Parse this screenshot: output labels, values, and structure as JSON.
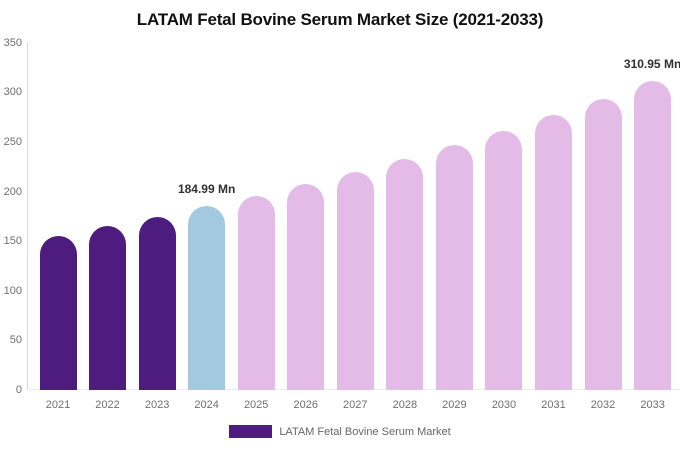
{
  "chart_data": {
    "type": "bar",
    "title": "LATAM Fetal Bovine Serum Market Size (2021-2033)",
    "series_name": "LATAM Fetal Bovine Serum Market",
    "categories": [
      "2021",
      "2022",
      "2023",
      "2024",
      "2025",
      "2026",
      "2027",
      "2028",
      "2029",
      "2030",
      "2031",
      "2032",
      "2033"
    ],
    "values": [
      155.6,
      164.8,
      174.6,
      184.99,
      196.0,
      207.6,
      219.9,
      233.0,
      246.8,
      261.5,
      277.0,
      293.5,
      310.95
    ],
    "data_labels": [
      {
        "category": "2024",
        "text": "184.99 Mn"
      },
      {
        "category": "2033",
        "text": "310.95 Mn"
      }
    ],
    "yticks": [
      0,
      50,
      100,
      150,
      200,
      250,
      300,
      350
    ],
    "ylim": [
      0,
      350
    ],
    "xlabel": "",
    "ylabel": "",
    "grid": false,
    "legend_position": "bottom",
    "bar_colors": [
      "#4E1B7E",
      "#4E1B7E",
      "#4E1B7E",
      "#A2C9E0",
      "#E4BBE7",
      "#E4BBE7",
      "#E4BBE7",
      "#E4BBE7",
      "#E4BBE7",
      "#E4BBE7",
      "#E4BBE7",
      "#E4BBE7",
      "#E4BBE7"
    ],
    "colors": {
      "historical_bar": "#4E1B7E",
      "highlight_bar": "#A2C9E0",
      "forecast_bar": "#E4BBE7",
      "legend_swatch": "#4E1B7E",
      "title_text": "#111111",
      "axis_text": "#6f6f6f",
      "data_label_text": "#303030",
      "axis_line": "#d9d9d9"
    }
  }
}
